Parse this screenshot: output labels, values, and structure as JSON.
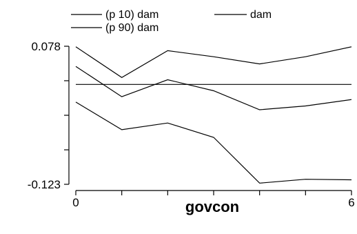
{
  "chart_data": {
    "type": "line",
    "title": "",
    "xlabel": "govcon",
    "ylabel": "",
    "xlim": [
      0,
      6
    ],
    "ylim": [
      -0.123,
      0.078
    ],
    "x_ticks": [
      0,
      1,
      2,
      3,
      4,
      5,
      6
    ],
    "x_tick_labels": [
      "0",
      "",
      "",
      "",
      "",
      "",
      "6"
    ],
    "y_ticks": [
      -0.123,
      -0.0728,
      -0.0225,
      0.0278,
      0.078
    ],
    "y_tick_labels": [
      "-0.123",
      "",
      "",
      "",
      "0.078"
    ],
    "legend_position": "top-left",
    "x": [
      0,
      1,
      2,
      3,
      4,
      5,
      6
    ],
    "series": [
      {
        "name": "(p 10) dam",
        "values": [
          -0.0033,
          -0.0435,
          -0.0338,
          -0.0547,
          -0.1213,
          -0.1157,
          -0.1165
        ]
      },
      {
        "name": "dam",
        "values": [
          0.0224,
          0.0224,
          0.0224,
          0.0224,
          0.0224,
          0.0224,
          0.0224
        ]
      },
      {
        "name": "(p 90) dam",
        "values": [
          0.0772,
          0.0325,
          0.0716,
          0.0627,
          0.0523,
          0.0627,
          0.0772
        ]
      },
      {
        "name": "",
        "values": [
          0.0487,
          0.0045,
          0.0293,
          0.0132,
          -0.0145,
          -0.0089,
          0.0004
        ]
      }
    ]
  }
}
